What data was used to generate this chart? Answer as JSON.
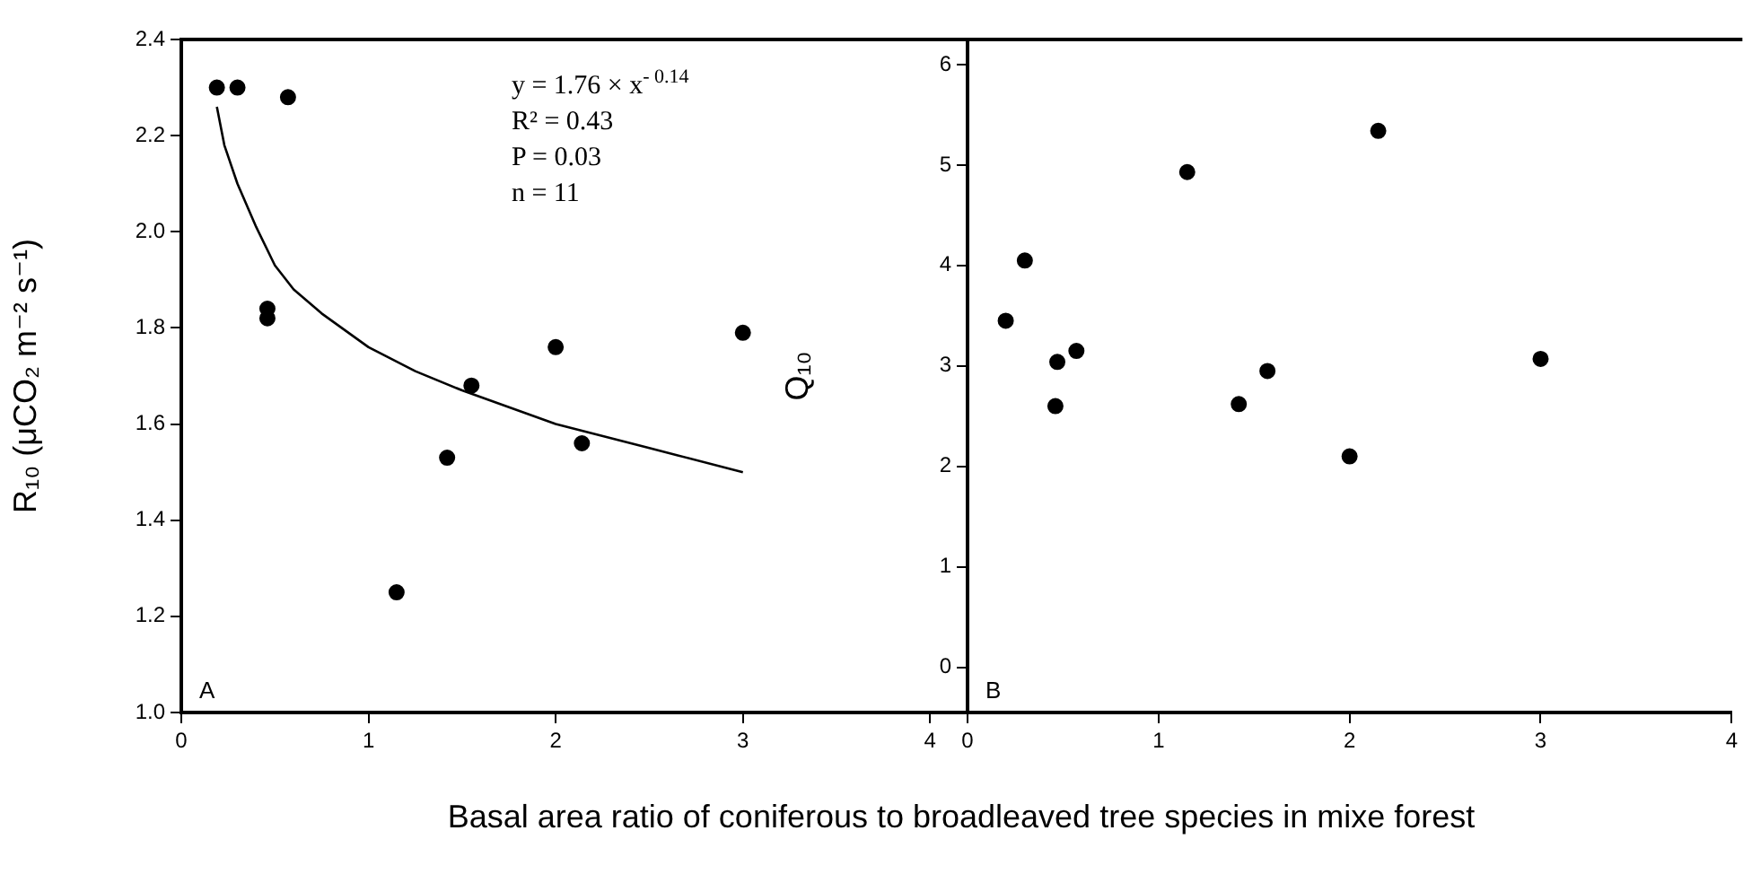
{
  "chart_data": [
    {
      "type": "scatter",
      "ylabel": "R₁₀ (μCO₂ m⁻² s⁻¹)",
      "xlabel": "Basal area ratio of coniferous to broadleaved tree species in mixe forest",
      "annotations": [
        "y = 1.76 × x$^{- 0.14}$",
        "R² = 0.43",
        "P = 0.03",
        "n = 11",
        "A"
      ],
      "xlim": [
        0,
        4.2
      ],
      "xticks": [
        0,
        1,
        2,
        3,
        4
      ],
      "ylim": [
        1.0,
        2.4
      ],
      "yticks": [
        {
          "value": 1.0,
          "label": "1.0"
        },
        {
          "value": 1.2,
          "label": "1.2"
        },
        {
          "value": 1.4,
          "label": "1.4"
        },
        {
          "value": 1.6,
          "label": "1.6"
        },
        {
          "value": 1.8,
          "label": "1.8"
        },
        {
          "value": 2.0,
          "label": "2.0"
        },
        {
          "value": 2.2,
          "label": "2.2"
        },
        {
          "value": 2.4,
          "label": "2.4"
        }
      ],
      "grid": false,
      "legend": false,
      "marker": "circle",
      "series": [
        {
          "color": "#000000",
          "x": [
            0.19,
            0.3,
            0.57,
            0.46,
            0.46,
            1.15,
            1.42,
            1.55,
            2.0,
            2.14,
            3.0
          ],
          "values": [
            2.3,
            2.3,
            2.28,
            1.84,
            1.82,
            1.25,
            1.53,
            1.68,
            1.76,
            1.56,
            1.79
          ]
        },
        {
          "type": "line",
          "marker": "none",
          "color": "#000000",
          "x": [
            0.19,
            0.23,
            0.3,
            0.4,
            0.5,
            0.6,
            0.75,
            1.0,
            1.25,
            1.5,
            2.0,
            2.5,
            3.0
          ],
          "values": [
            2.26,
            2.18,
            2.1,
            2.01,
            1.93,
            1.88,
            1.83,
            1.76,
            1.71,
            1.67,
            1.6,
            1.55,
            1.5
          ]
        }
      ]
    },
    {
      "type": "scatter",
      "ylabel": "Q₁₀",
      "annotations": [
        "B"
      ],
      "xlim": [
        0,
        4
      ],
      "xticks": [
        0,
        1,
        2,
        3,
        4
      ],
      "ylim": [
        -0.45,
        6.25
      ],
      "yticks": [
        0,
        1,
        2,
        3,
        4,
        5,
        6
      ],
      "grid": false,
      "legend": false,
      "marker": "circle",
      "series": [
        {
          "color": "#000000",
          "x": [
            0.2,
            0.3,
            0.47,
            0.46,
            0.57,
            1.15,
            1.42,
            1.57,
            2.0,
            2.15,
            3.0
          ],
          "values": [
            3.45,
            4.05,
            3.04,
            2.6,
            3.15,
            4.93,
            2.62,
            2.95,
            2.1,
            5.34,
            3.07
          ]
        }
      ]
    }
  ]
}
